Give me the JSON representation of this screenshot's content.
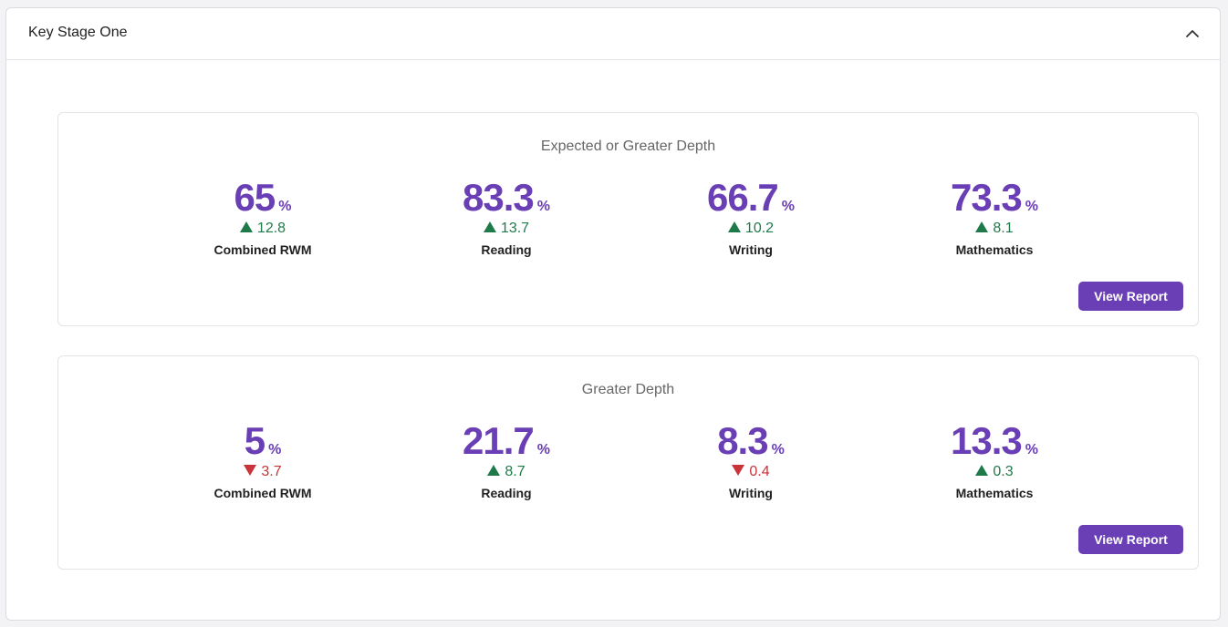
{
  "panel": {
    "title": "Key Stage One",
    "collapse_icon": "chevron-up-icon"
  },
  "cards": [
    {
      "title": "Expected or Greater Depth",
      "button_label": "View Report",
      "metrics": [
        {
          "value": "65",
          "unit": "%",
          "change": "12.8",
          "direction": "up",
          "label": "Combined RWM"
        },
        {
          "value": "83.3",
          "unit": "%",
          "change": "13.7",
          "direction": "up",
          "label": "Reading"
        },
        {
          "value": "66.7",
          "unit": "%",
          "change": "10.2",
          "direction": "up",
          "label": "Writing"
        },
        {
          "value": "73.3",
          "unit": "%",
          "change": "8.1",
          "direction": "up",
          "label": "Mathematics"
        }
      ]
    },
    {
      "title": "Greater Depth",
      "button_label": "View Report",
      "metrics": [
        {
          "value": "5",
          "unit": "%",
          "change": "3.7",
          "direction": "down",
          "label": "Combined RWM"
        },
        {
          "value": "21.7",
          "unit": "%",
          "change": "8.7",
          "direction": "up",
          "label": "Reading"
        },
        {
          "value": "8.3",
          "unit": "%",
          "change": "0.4",
          "direction": "down",
          "label": "Writing"
        },
        {
          "value": "13.3",
          "unit": "%",
          "change": "0.3",
          "direction": "up",
          "label": "Mathematics"
        }
      ]
    }
  ],
  "colors": {
    "accent": "#6a3fb5",
    "positive": "#1f7a4a",
    "negative": "#c8343a"
  }
}
